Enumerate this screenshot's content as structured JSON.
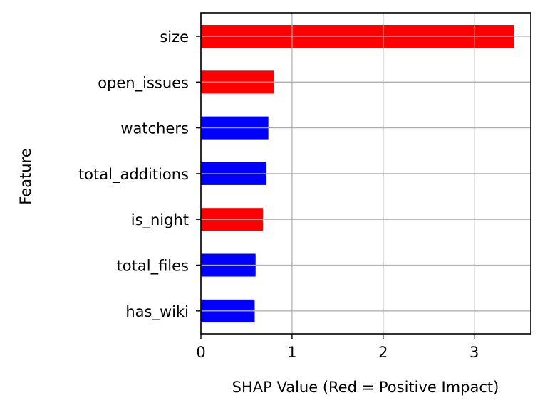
{
  "chart_data": {
    "type": "bar",
    "orientation": "horizontal",
    "title": "",
    "xlabel": "SHAP Value (Red = Positive Impact)",
    "ylabel": "Feature",
    "xlim": [
      0,
      3.62
    ],
    "xticks": [
      0,
      1,
      2,
      3
    ],
    "grid": true,
    "categories": [
      "size",
      "open_issues",
      "watchers",
      "total_additions",
      "is_night",
      "total_files",
      "has_wiki"
    ],
    "values": [
      3.44,
      0.8,
      0.74,
      0.72,
      0.68,
      0.6,
      0.59
    ],
    "impact": [
      "positive",
      "positive",
      "negative",
      "negative",
      "positive",
      "negative",
      "negative"
    ],
    "colors": {
      "positive": "#ff0000",
      "negative": "#0000ff",
      "grid": "#b0b0b0",
      "axis": "#000000"
    }
  }
}
